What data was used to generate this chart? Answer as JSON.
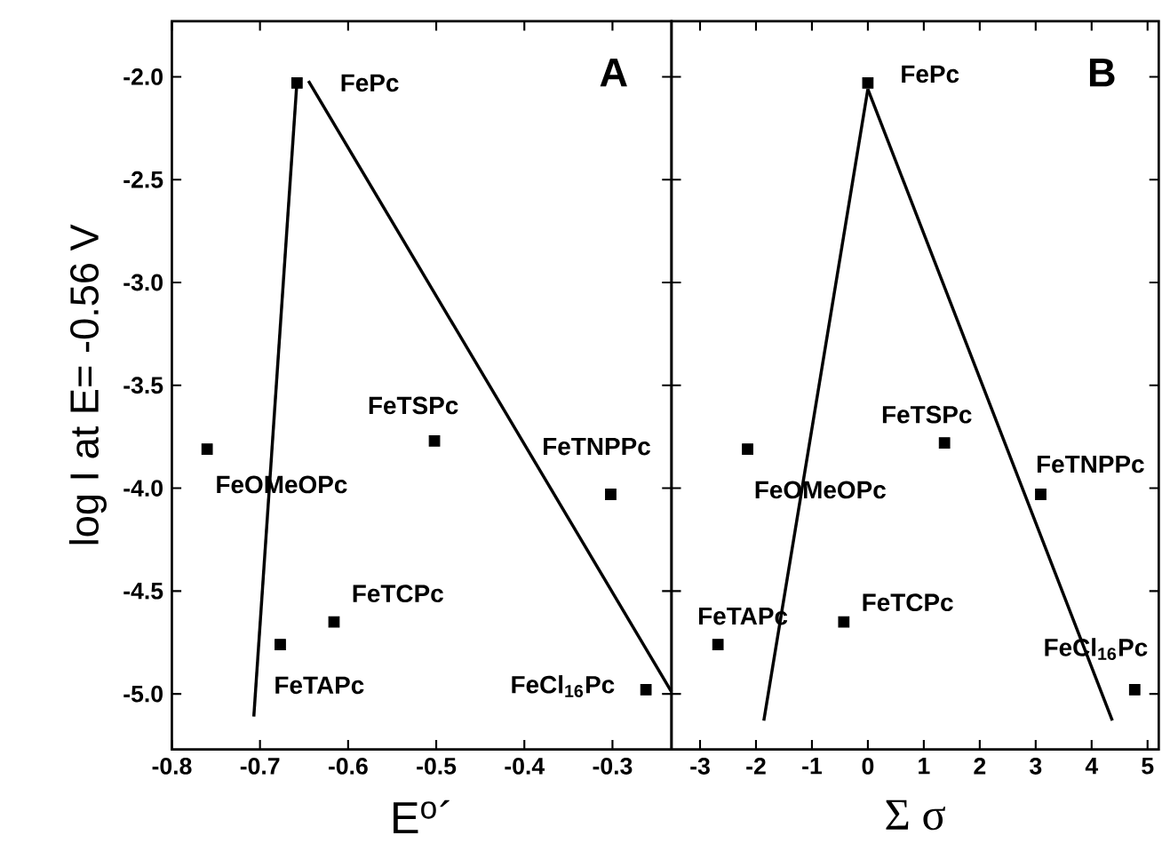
{
  "chart_data": [
    {
      "type": "scatter",
      "xlabel": "E$^{o}$´",
      "ylabel": "log I at E= -0.56 V",
      "xlim": [
        -0.8,
        -0.233
      ],
      "ylim": [
        -5.27,
        -1.73
      ],
      "xticks": [
        {
          "value": -0.8,
          "label": "-0.8"
        },
        {
          "value": -0.7,
          "label": "-0.7"
        },
        {
          "value": -0.6,
          "label": "-0.6"
        },
        {
          "value": -0.5,
          "label": "-0.5"
        },
        {
          "value": -0.4,
          "label": "-0.4"
        },
        {
          "value": -0.3,
          "label": "-0.3"
        }
      ],
      "yticks": [
        {
          "value": -2.0,
          "label": "-2.0"
        },
        {
          "value": -2.5,
          "label": "-2.5"
        },
        {
          "value": -3.0,
          "label": "-3.0"
        },
        {
          "value": -3.5,
          "label": "-3.5"
        },
        {
          "value": -4.0,
          "label": "-4.0"
        },
        {
          "value": -4.5,
          "label": "-4.5"
        },
        {
          "value": -5.0,
          "label": "-5.0"
        }
      ],
      "marker": "square",
      "grid": false,
      "series": [
        {
          "color": "#000000",
          "x": [
            -0.658,
            -0.76,
            -0.502,
            -0.302,
            -0.616,
            -0.677,
            -0.262
          ],
          "values": [
            -2.03,
            -3.81,
            -3.77,
            -4.03,
            -4.65,
            -4.76,
            -4.98
          ]
        },
        {
          "type": "line",
          "marker": "none",
          "color": "#000000",
          "x": [
            -0.707,
            -0.658
          ],
          "values": [
            -5.11,
            -2.02
          ]
        },
        {
          "type": "line",
          "marker": "none",
          "color": "#000000",
          "x": [
            -0.645,
            -0.233
          ],
          "values": [
            -2.02,
            -4.99
          ]
        }
      ],
      "annotations": [
        {
          "text": "FePc",
          "x": -0.658,
          "y": -2.03
        },
        {
          "text": "FeOMeOPc",
          "x": -0.76,
          "y": -3.81
        },
        {
          "text": "FeTSPc",
          "x": -0.502,
          "y": -3.77
        },
        {
          "text": "FeTNPPc",
          "x": -0.302,
          "y": -4.03
        },
        {
          "text": "FeTCPc",
          "x": -0.616,
          "y": -4.65
        },
        {
          "text": "FeTAPc",
          "x": -0.677,
          "y": -4.76
        },
        {
          "text": "FeCl$_{16}$Pc",
          "x": -0.262,
          "y": -4.98
        },
        "A"
      ]
    },
    {
      "type": "scatter",
      "xlabel": "Σ σ",
      "xlim": [
        -3.51,
        5.2
      ],
      "ylim": [
        -5.27,
        -1.73
      ],
      "xticks": [
        -3,
        -2,
        -1,
        0,
        1,
        2,
        3,
        4,
        5
      ],
      "yticks": [
        {
          "value": -2.0,
          "label": null
        },
        {
          "value": -2.5,
          "label": null
        },
        {
          "value": -3.0,
          "label": null
        },
        {
          "value": -3.5,
          "label": null
        },
        {
          "value": -4.0,
          "label": null
        },
        {
          "value": -4.5,
          "label": null
        },
        {
          "value": -5.0,
          "label": null
        }
      ],
      "tick_labels": "x",
      "marker": "square",
      "grid": false,
      "series": [
        {
          "color": "#000000",
          "x": [
            0.0,
            -2.15,
            1.37,
            3.09,
            -0.43,
            -2.68,
            4.77
          ],
          "values": [
            -2.03,
            -3.81,
            -3.78,
            -4.03,
            -4.65,
            -4.76,
            -4.98
          ]
        },
        {
          "type": "line",
          "marker": "none",
          "color": "#000000",
          "x": [
            -1.86,
            0.0
          ],
          "values": [
            -5.13,
            -2.06
          ]
        },
        {
          "type": "line",
          "marker": "none",
          "color": "#000000",
          "x": [
            0.0,
            4.37
          ],
          "values": [
            -2.06,
            -5.13
          ]
        }
      ],
      "annotations": [
        {
          "text": "FePc",
          "x": 0.0,
          "y": -2.03
        },
        {
          "text": "FeOMeOPc",
          "x": -2.15,
          "y": -3.81
        },
        {
          "text": "FeTSPc",
          "x": 1.37,
          "y": -3.78
        },
        {
          "text": "FeTNPPc",
          "x": 3.09,
          "y": -4.03
        },
        {
          "text": "FeTCPc",
          "x": -0.43,
          "y": -4.65
        },
        {
          "text": "FeTAPc",
          "x": -2.68,
          "y": -4.76
        },
        {
          "text": "FeCl$_{16}$Pc",
          "x": 4.77,
          "y": -4.98
        },
        "B"
      ]
    }
  ]
}
